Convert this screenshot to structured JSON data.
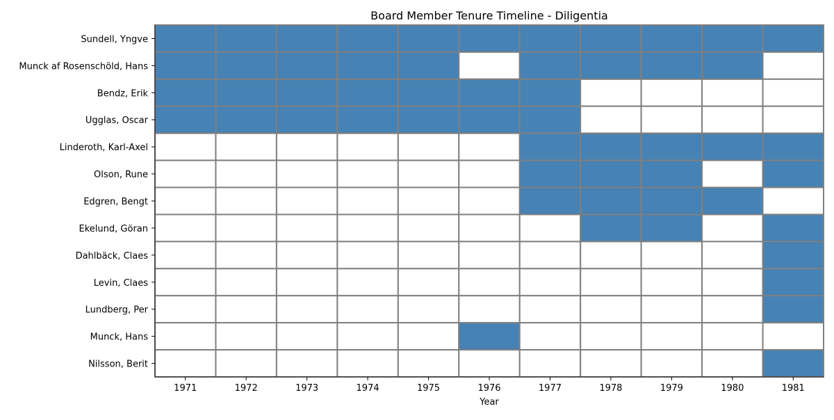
{
  "chart_data": {
    "type": "heatmap",
    "title": "Board Member Tenure Timeline - Diligentia",
    "xlabel": "Year",
    "ylabel": "",
    "x": [
      "1971",
      "1972",
      "1973",
      "1974",
      "1975",
      "1976",
      "1977",
      "1978",
      "1979",
      "1980",
      "1981"
    ],
    "y": [
      "Sundell, Yngve",
      "Munck af Rosenschöld, Hans",
      "Bendz, Erik",
      "Ugglas, Oscar",
      "Linderoth, Karl-Axel",
      "Olson, Rune",
      "Edgren, Bengt",
      "Ekelund, Göran",
      "Dahlbäck, Claes",
      "Levin, Claes",
      "Lundberg, Per",
      "Munck, Hans",
      "Nilsson, Berit"
    ],
    "values": [
      [
        1,
        1,
        1,
        1,
        1,
        1,
        1,
        1,
        1,
        1,
        1
      ],
      [
        1,
        1,
        1,
        1,
        1,
        0,
        1,
        1,
        1,
        1,
        0
      ],
      [
        1,
        1,
        1,
        1,
        1,
        1,
        1,
        0,
        0,
        0,
        0
      ],
      [
        1,
        1,
        1,
        1,
        1,
        1,
        1,
        0,
        0,
        0,
        0
      ],
      [
        0,
        0,
        0,
        0,
        0,
        0,
        1,
        1,
        1,
        1,
        1
      ],
      [
        0,
        0,
        0,
        0,
        0,
        0,
        1,
        1,
        1,
        0,
        1
      ],
      [
        0,
        0,
        0,
        0,
        0,
        0,
        1,
        1,
        1,
        1,
        0
      ],
      [
        0,
        0,
        0,
        0,
        0,
        0,
        0,
        1,
        1,
        0,
        1
      ],
      [
        0,
        0,
        0,
        0,
        0,
        0,
        0,
        0,
        0,
        0,
        1
      ],
      [
        0,
        0,
        0,
        0,
        0,
        0,
        0,
        0,
        0,
        0,
        1
      ],
      [
        0,
        0,
        0,
        0,
        0,
        0,
        0,
        0,
        0,
        0,
        1
      ],
      [
        0,
        0,
        0,
        0,
        0,
        1,
        0,
        0,
        0,
        0,
        0
      ],
      [
        0,
        0,
        0,
        0,
        0,
        0,
        0,
        0,
        0,
        0,
        1
      ]
    ],
    "colors": {
      "on": "#4682b4",
      "off": "#ffffff",
      "grid": "#808080"
    },
    "grid": true,
    "legend": "none"
  }
}
